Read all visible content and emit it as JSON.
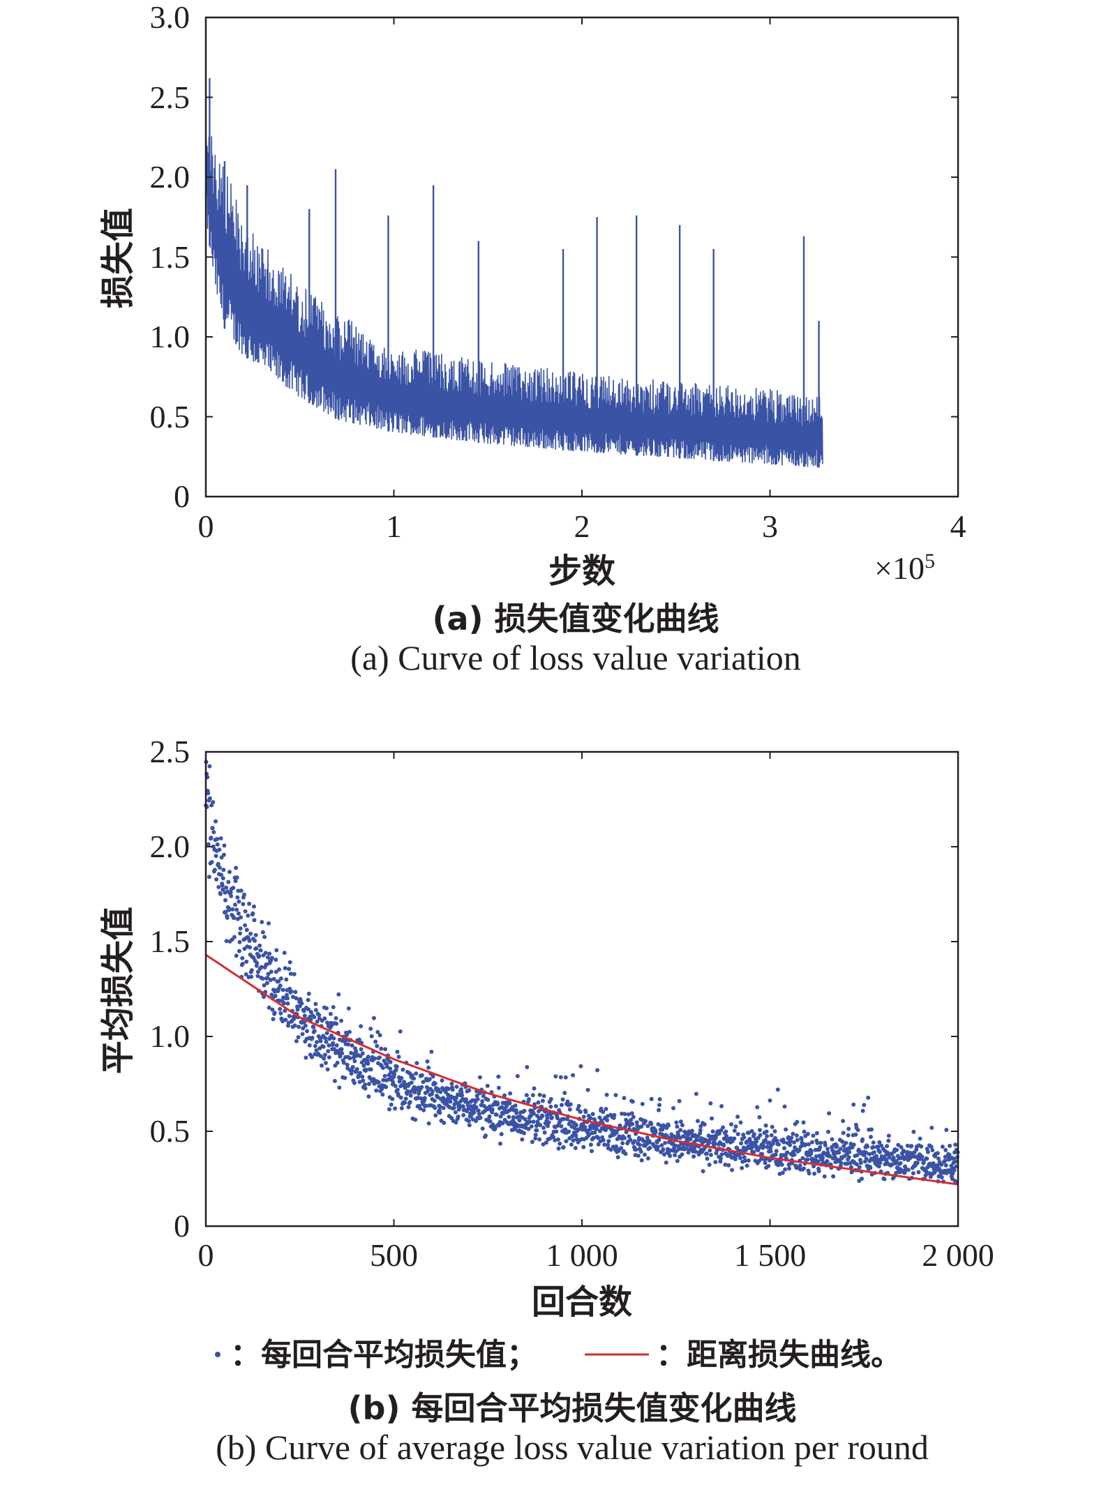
{
  "colors": {
    "series": "#3a53a5",
    "fit": "#d62d2d",
    "axis": "#231f20"
  },
  "chart_data": [
    {
      "type": "line",
      "xlabel": "步数",
      "ylabel": "损失值",
      "x_exponent_label": "×10",
      "x_exponent_power": "5",
      "xlim": [
        0,
        4
      ],
      "ylim": [
        0,
        3.0
      ],
      "xticks": [
        "0",
        "1",
        "2",
        "3",
        "4"
      ],
      "yticks": [
        "0",
        "0.5",
        "1.0",
        "1.5",
        "2.0",
        "2.5",
        "3.0"
      ],
      "caption_cn": "(a) 损失值变化曲线",
      "caption_en": "(a) Curve of loss value variation",
      "x_max_data": 3.28,
      "envelope": {
        "x": [
          0,
          0.05,
          0.1,
          0.2,
          0.3,
          0.5,
          0.7,
          1.0,
          1.5,
          2.0,
          2.5,
          3.0,
          3.28
        ],
        "lower": [
          1.75,
          1.3,
          1.05,
          0.88,
          0.8,
          0.62,
          0.48,
          0.4,
          0.33,
          0.28,
          0.24,
          0.2,
          0.18
        ],
        "upper": [
          2.45,
          2.2,
          2.05,
          1.8,
          1.6,
          1.35,
          1.15,
          0.95,
          0.85,
          0.78,
          0.72,
          0.68,
          0.62
        ]
      },
      "spikes": [
        {
          "x": 0.02,
          "y": 2.62
        },
        {
          "x": 0.1,
          "y": 2.1
        },
        {
          "x": 0.22,
          "y": 1.95
        },
        {
          "x": 0.55,
          "y": 1.8
        },
        {
          "x": 0.69,
          "y": 2.05
        },
        {
          "x": 0.97,
          "y": 1.76
        },
        {
          "x": 1.21,
          "y": 1.95
        },
        {
          "x": 1.45,
          "y": 1.6
        },
        {
          "x": 1.9,
          "y": 1.55
        },
        {
          "x": 2.08,
          "y": 1.75
        },
        {
          "x": 2.29,
          "y": 1.76
        },
        {
          "x": 2.52,
          "y": 1.7
        },
        {
          "x": 2.7,
          "y": 1.55
        },
        {
          "x": 3.18,
          "y": 1.63
        },
        {
          "x": 3.26,
          "y": 1.1
        }
      ]
    },
    {
      "type": "scatter",
      "xlabel": "回合数",
      "ylabel": "平均损失值",
      "xlim": [
        0,
        2000
      ],
      "ylim": [
        0,
        2.5
      ],
      "xticks": [
        "0",
        "500",
        "1 000",
        "1 500",
        "2 000"
      ],
      "yticks": [
        "0",
        "0.5",
        "1.0",
        "1.5",
        "2.0",
        "2.5"
      ],
      "caption_cn": "(b) 每回合平均损失值变化曲线",
      "caption_en": "(b) Curve of average loss value variation per round",
      "legend": {
        "dots_label": "：每回合平均损失值；",
        "line_label": "：距离损失曲线。"
      },
      "fit_curve": {
        "x": [
          0,
          250,
          500,
          750,
          1000,
          1250,
          1500,
          1750,
          2000
        ],
        "y": [
          1.43,
          1.1,
          0.88,
          0.7,
          0.56,
          0.45,
          0.36,
          0.29,
          0.22
        ]
      },
      "scatter_trend": {
        "x": [
          0,
          50,
          100,
          200,
          300,
          500,
          750,
          1000,
          1250,
          1500,
          1750,
          2000
        ],
        "y": [
          2.2,
          1.75,
          1.5,
          1.22,
          1.0,
          0.76,
          0.6,
          0.52,
          0.45,
          0.4,
          0.36,
          0.33
        ]
      },
      "point_count": 2000
    }
  ]
}
